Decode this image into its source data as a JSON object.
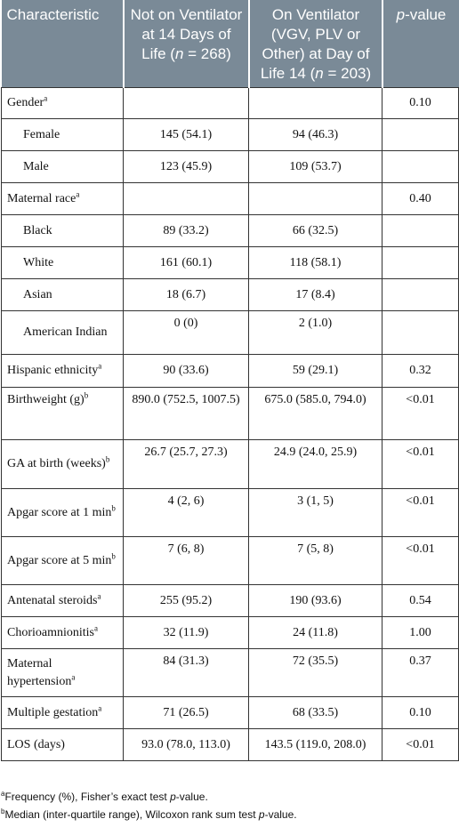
{
  "header": {
    "col1": "Characteristic",
    "col2_main": "Not on Ventilator at 14 Days of Life (",
    "col2_n_var": "n",
    "col2_n_val": " = 268)",
    "col3_main": "On Ventilator (VGV, PLV or Other) at Day of Life 14 (",
    "col3_n_var": "n",
    "col3_n_val": " = 203)",
    "col4_italic": "p",
    "col4_rest": "-value"
  },
  "rows": [
    {
      "label": "Gender",
      "sup": "a",
      "c2": "",
      "c3": "",
      "p": "0.10"
    },
    {
      "label": "Female",
      "sup": "",
      "c2": "145 (54.1)",
      "c3": "94 (46.3)",
      "p": ""
    },
    {
      "label": "Male",
      "sup": "",
      "c2": "123 (45.9)",
      "c3": "109 (53.7)",
      "p": ""
    },
    {
      "label": "Maternal race",
      "sup": "a",
      "c2": "",
      "c3": "",
      "p": "0.40"
    },
    {
      "label": "Black",
      "sup": "",
      "c2": "89 (33.2)",
      "c3": "66 (32.5)",
      "p": ""
    },
    {
      "label": "White",
      "sup": "",
      "c2": "161 (60.1)",
      "c3": "118 (58.1)",
      "p": ""
    },
    {
      "label": "Asian",
      "sup": "",
      "c2": "18 (6.7)",
      "c3": "17 (8.4)",
      "p": ""
    },
    {
      "label": "American Indian",
      "sup": "",
      "c2": "0 (0)",
      "c3": "2 (1.0)",
      "p": ""
    },
    {
      "label": "Hispanic ethnicity",
      "sup": "a",
      "c2": "90 (33.6)",
      "c3": "59 (29.1)",
      "p": "0.32"
    },
    {
      "label": "Birthweight (g)",
      "sup": "b",
      "c2": "890.0 (752.5, 1007.5)",
      "c3": "675.0 (585.0, 794.0)",
      "p": "<0.01"
    },
    {
      "label": "GA at birth (weeks)",
      "sup": "b",
      "c2": "26.7 (25.7, 27.3)",
      "c3": "24.9 (24.0, 25.9)",
      "p": "<0.01"
    },
    {
      "label": "Apgar score at 1 min",
      "sup": "b",
      "c2": "4 (2, 6)",
      "c3": "3 (1, 5)",
      "p": "<0.01"
    },
    {
      "label": "Apgar score at 5 min",
      "sup": "b",
      "c2": "7 (6, 8)",
      "c3": "7 (5, 8)",
      "p": "<0.01"
    },
    {
      "label": "Antenatal steroids",
      "sup": "a",
      "c2": "255 (95.2)",
      "c3": "190 (93.6)",
      "p": "0.54"
    },
    {
      "label": "Chorioamnionitis",
      "sup": "a",
      "c2": "32 (11.9)",
      "c3": "24 (11.8)",
      "p": "1.00"
    },
    {
      "label": "Maternal hypertension",
      "sup": "a",
      "c2": "84 (31.3)",
      "c3": "72 (35.5)",
      "p": "0.37"
    },
    {
      "label": "Multiple gestation",
      "sup": "a",
      "c2": "71 (26.5)",
      "c3": "68 (33.5)",
      "p": "0.10"
    },
    {
      "label": "LOS (days)",
      "sup": "",
      "c2": "93.0 (78.0, 113.0)",
      "c3": "143.5 (119.0, 208.0)",
      "p": "<0.01"
    }
  ],
  "footnotes": {
    "a_mark": "a",
    "a_text": "Frequency (%), Fisher’s exact test ",
    "a_italic": "p",
    "a_end": "-value.",
    "b_mark": "b",
    "b_text": "Median (inter-quartile range), Wilcoxon rank sum test ",
    "b_italic": "p",
    "b_end": "-value."
  }
}
